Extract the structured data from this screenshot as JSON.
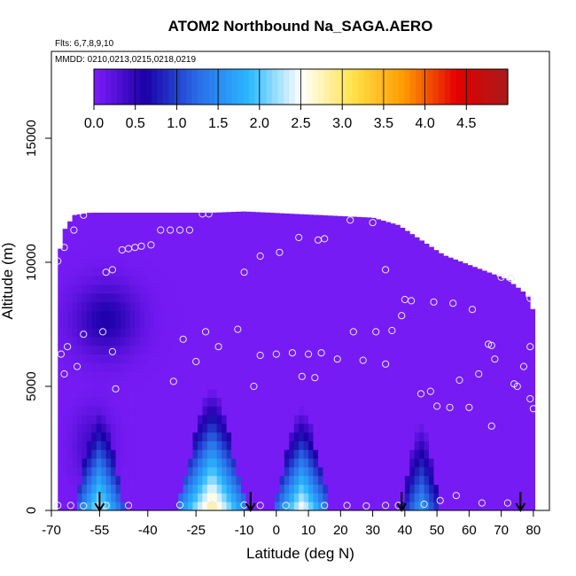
{
  "chart_data": {
    "type": "heatmap",
    "title": "ATOM2 Northbound Na_SAGA.AERO",
    "flights_label": "Flts: 6,7,8,9,10",
    "dates_label": "MMDD: 0210,0213,0215,0218,0219",
    "xlabel": "Latitude (deg N)",
    "ylabel": "Altitude (m)",
    "xlim": [
      -70,
      85
    ],
    "ylim": [
      0,
      18500
    ],
    "x_ticks": [
      -70,
      -55,
      -40,
      -25,
      -10,
      0,
      10,
      20,
      30,
      40,
      50,
      60,
      70,
      80
    ],
    "y_ticks": [
      0,
      5000,
      10000,
      15000
    ],
    "colorbar": {
      "range": [
        0,
        5
      ],
      "tick_values": [
        0.0,
        0.5,
        1.0,
        1.5,
        2.0,
        2.5,
        3.0,
        3.5,
        4.0,
        4.5
      ],
      "colors": [
        "#7f1dfb",
        "#1a00a8",
        "#2a6ce8",
        "#2ab8ff",
        "#ffffff",
        "#ffe24a",
        "#ff9a00",
        "#e30000",
        "#a91a1a"
      ]
    },
    "background_value": 0.05,
    "plume_peaks": [
      {
        "lat": -55,
        "value": 2.4,
        "top_alt": 4400,
        "half_width_deg": 8
      },
      {
        "lat": -20,
        "value": 3.0,
        "top_alt": 5000,
        "half_width_deg": 11
      },
      {
        "lat": 8,
        "value": 2.6,
        "top_alt": 4200,
        "half_width_deg": 9
      },
      {
        "lat": 45,
        "value": 1.7,
        "top_alt": 3700,
        "half_width_deg": 6
      }
    ],
    "profile_arrows_lat": [
      -55,
      -8,
      39,
      76
    ],
    "sample_points": [
      {
        "lat": -68,
        "alt": 10050
      },
      {
        "lat": -66,
        "alt": 10600
      },
      {
        "lat": -63,
        "alt": 11300
      },
      {
        "lat": -60,
        "alt": 11900
      },
      {
        "lat": -67,
        "alt": 6300
      },
      {
        "lat": -65,
        "alt": 6600
      },
      {
        "lat": -62,
        "alt": 5800
      },
      {
        "lat": -66,
        "alt": 5500
      },
      {
        "lat": -60,
        "alt": 7100
      },
      {
        "lat": -54,
        "alt": 7200
      },
      {
        "lat": -51,
        "alt": 6400
      },
      {
        "lat": -50,
        "alt": 4900
      },
      {
        "lat": -53,
        "alt": 9600
      },
      {
        "lat": -51,
        "alt": 9700
      },
      {
        "lat": -48,
        "alt": 10500
      },
      {
        "lat": -46,
        "alt": 10550
      },
      {
        "lat": -44,
        "alt": 10600
      },
      {
        "lat": -42,
        "alt": 10650
      },
      {
        "lat": -39,
        "alt": 10700
      },
      {
        "lat": -36,
        "alt": 11300
      },
      {
        "lat": -33,
        "alt": 11300
      },
      {
        "lat": -30,
        "alt": 11300
      },
      {
        "lat": -27,
        "alt": 11300
      },
      {
        "lat": -23,
        "alt": 11950
      },
      {
        "lat": -21,
        "alt": 11950
      },
      {
        "lat": -22,
        "alt": 7200
      },
      {
        "lat": -29,
        "alt": 6900
      },
      {
        "lat": -25,
        "alt": 6000
      },
      {
        "lat": -32,
        "alt": 5200
      },
      {
        "lat": -18,
        "alt": 6600
      },
      {
        "lat": -12,
        "alt": 7300
      },
      {
        "lat": -10,
        "alt": 9600
      },
      {
        "lat": -5,
        "alt": 10250
      },
      {
        "lat": 1,
        "alt": 10400
      },
      {
        "lat": 7,
        "alt": 11000
      },
      {
        "lat": 13,
        "alt": 10900
      },
      {
        "lat": 15,
        "alt": 10950
      },
      {
        "lat": 23,
        "alt": 11700
      },
      {
        "lat": 30,
        "alt": 11600
      },
      {
        "lat": 34,
        "alt": 9700
      },
      {
        "lat": 40,
        "alt": 8500
      },
      {
        "lat": 42,
        "alt": 8450
      },
      {
        "lat": 49,
        "alt": 8400
      },
      {
        "lat": 55,
        "alt": 8350
      },
      {
        "lat": 61,
        "alt": 8100
      },
      {
        "lat": 70,
        "alt": 9400
      },
      {
        "lat": 73,
        "alt": 9350
      },
      {
        "lat": 79,
        "alt": 8550
      },
      {
        "lat": -7,
        "alt": 5000
      },
      {
        "lat": -5,
        "alt": 6250
      },
      {
        "lat": 0,
        "alt": 6300
      },
      {
        "lat": 5,
        "alt": 6350
      },
      {
        "lat": 10,
        "alt": 6300
      },
      {
        "lat": 14,
        "alt": 6350
      },
      {
        "lat": 8,
        "alt": 5400
      },
      {
        "lat": 12,
        "alt": 5350
      },
      {
        "lat": 19,
        "alt": 6100
      },
      {
        "lat": 24,
        "alt": 7200
      },
      {
        "lat": 27,
        "alt": 6050
      },
      {
        "lat": 31,
        "alt": 7200
      },
      {
        "lat": 34,
        "alt": 5900
      },
      {
        "lat": 36,
        "alt": 7250
      },
      {
        "lat": 39,
        "alt": 7850
      },
      {
        "lat": 45,
        "alt": 4700
      },
      {
        "lat": 48,
        "alt": 4800
      },
      {
        "lat": 50,
        "alt": 4200
      },
      {
        "lat": 54,
        "alt": 4150
      },
      {
        "lat": 57,
        "alt": 5250
      },
      {
        "lat": 60,
        "alt": 4150
      },
      {
        "lat": 63,
        "alt": 5500
      },
      {
        "lat": 66,
        "alt": 6700
      },
      {
        "lat": 67,
        "alt": 6650
      },
      {
        "lat": 68,
        "alt": 6100
      },
      {
        "lat": 67,
        "alt": 3400
      },
      {
        "lat": 74,
        "alt": 5100
      },
      {
        "lat": 75,
        "alt": 5000
      },
      {
        "lat": 77,
        "alt": 5800
      },
      {
        "lat": 79,
        "alt": 6600
      },
      {
        "lat": 80,
        "alt": 4100
      },
      {
        "lat": 79,
        "alt": 4500
      },
      {
        "lat": -68,
        "alt": 200
      },
      {
        "lat": -64,
        "alt": 200
      },
      {
        "lat": -60,
        "alt": 180
      },
      {
        "lat": -53,
        "alt": 200
      },
      {
        "lat": -46,
        "alt": 200
      },
      {
        "lat": -30,
        "alt": 220
      },
      {
        "lat": -20,
        "alt": 240
      },
      {
        "lat": -10,
        "alt": 220
      },
      {
        "lat": -5,
        "alt": 200
      },
      {
        "lat": 3,
        "alt": 200
      },
      {
        "lat": 8,
        "alt": 220
      },
      {
        "lat": 15,
        "alt": 200
      },
      {
        "lat": 22,
        "alt": 200
      },
      {
        "lat": 28,
        "alt": 180
      },
      {
        "lat": 34,
        "alt": 200
      },
      {
        "lat": 38,
        "alt": 200
      },
      {
        "lat": 46,
        "alt": 250
      },
      {
        "lat": 51,
        "alt": 400
      },
      {
        "lat": 56,
        "alt": 600
      },
      {
        "lat": 64,
        "alt": 300
      },
      {
        "lat": 72,
        "alt": 300
      }
    ]
  }
}
